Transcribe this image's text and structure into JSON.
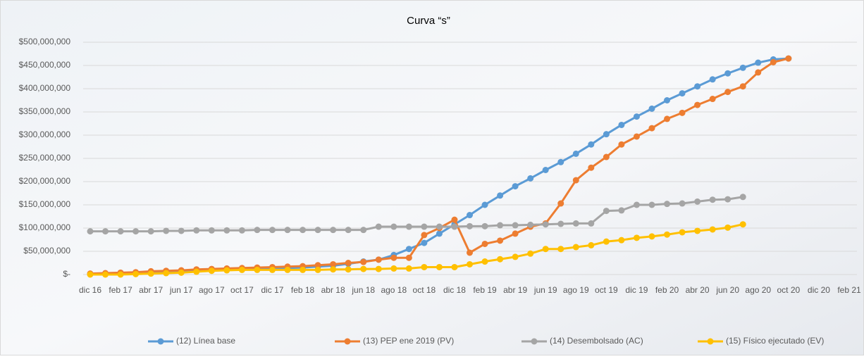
{
  "chart_data": {
    "type": "line",
    "title": "Curva “s”",
    "categories": [
      "dic 16",
      null,
      "feb 17",
      null,
      "abr 17",
      null,
      "jun 17",
      null,
      "ago 17",
      null,
      "oct 17",
      null,
      "dic 17",
      null,
      "feb 18",
      null,
      "abr 18",
      null,
      "jun 18",
      null,
      "ago 18",
      null,
      "oct 18",
      null,
      "dic 18",
      null,
      "feb 19",
      null,
      "abr 19",
      null,
      "jun 19",
      null,
      "ago 19",
      null,
      "oct 19",
      null,
      "dic 19",
      null,
      "feb 20",
      null,
      "abr 20",
      null,
      "jun 20",
      null,
      "ago 20",
      null,
      "oct 20",
      null,
      "dic 20",
      null,
      "feb 21"
    ],
    "ylim": [
      0,
      500000000
    ],
    "yticks": [
      {
        "value": 0,
        "label": "$-"
      },
      {
        "value": 50000000,
        "label": "$50,000,000"
      },
      {
        "value": 100000000,
        "label": "$100,000,000"
      },
      {
        "value": 150000000,
        "label": "$150,000,000"
      },
      {
        "value": 200000000,
        "label": "$200,000,000"
      },
      {
        "value": 250000000,
        "label": "$250,000,000"
      },
      {
        "value": 300000000,
        "label": "$300,000,000"
      },
      {
        "value": 350000000,
        "label": "$350,000,000"
      },
      {
        "value": 400000000,
        "label": "$400,000,000"
      },
      {
        "value": 450000000,
        "label": "$450,000,000"
      },
      {
        "value": 500000000,
        "label": "$500,000,000"
      }
    ],
    "grid": true,
    "legend": "bottom",
    "series": [
      {
        "name": "(12) Línea base",
        "color": "#5b9bd5",
        "values": [
          1000000,
          2000000,
          3000000,
          4000000,
          5000000,
          6000000,
          7000000,
          8000000,
          9000000,
          10000000,
          11000000,
          12000000,
          13000000,
          14000000,
          15000000,
          17000000,
          19000000,
          23000000,
          28000000,
          32000000,
          42000000,
          55000000,
          68000000,
          88000000,
          108000000,
          128000000,
          150000000,
          170000000,
          190000000,
          207000000,
          225000000,
          242000000,
          260000000,
          280000000,
          302000000,
          322000000,
          340000000,
          357000000,
          375000000,
          390000000,
          405000000,
          420000000,
          433000000,
          445000000,
          456000000,
          463000000,
          465000000,
          null,
          null,
          null,
          null
        ]
      },
      {
        "name": "(13) PEP ene 2019 (PV)",
        "color": "#ed7d31",
        "values": [
          2000000,
          3000000,
          4000000,
          5000000,
          7000000,
          8000000,
          9000000,
          11000000,
          12000000,
          13000000,
          14000000,
          15000000,
          16000000,
          17000000,
          18000000,
          20000000,
          22000000,
          25000000,
          27000000,
          32000000,
          36000000,
          36000000,
          85000000,
          100000000,
          118000000,
          47000000,
          66000000,
          73000000,
          88000000,
          103000000,
          110000000,
          153000000,
          203000000,
          230000000,
          253000000,
          280000000,
          297000000,
          315000000,
          335000000,
          348000000,
          365000000,
          378000000,
          393000000,
          405000000,
          435000000,
          457000000,
          465000000,
          null,
          null,
          null,
          null
        ]
      },
      {
        "name": "(14) Desembolsado (AC)",
        "color": "#a5a5a5",
        "values": [
          93000000,
          93000000,
          93000000,
          93000000,
          93000000,
          94000000,
          94000000,
          95000000,
          95000000,
          95000000,
          95000000,
          96000000,
          96000000,
          96000000,
          96000000,
          96000000,
          96000000,
          96000000,
          96000000,
          103000000,
          103000000,
          103000000,
          103000000,
          103000000,
          103000000,
          104000000,
          104000000,
          106000000,
          106000000,
          107000000,
          108000000,
          109000000,
          110000000,
          110000000,
          137000000,
          138000000,
          150000000,
          150000000,
          152000000,
          153000000,
          157000000,
          161000000,
          162000000,
          167000000,
          null,
          null,
          null,
          null,
          null,
          null,
          null
        ]
      },
      {
        "name": "(15) Físico ejecutado (EV)",
        "color": "#ffc000",
        "values": [
          0,
          0,
          0,
          1000000,
          2000000,
          3000000,
          4000000,
          6000000,
          8000000,
          9000000,
          10000000,
          10000000,
          10000000,
          10000000,
          10000000,
          10000000,
          11000000,
          11000000,
          12000000,
          12000000,
          13000000,
          13000000,
          16000000,
          16000000,
          16000000,
          22000000,
          28000000,
          33000000,
          38000000,
          45000000,
          55000000,
          55000000,
          59000000,
          63000000,
          71000000,
          74000000,
          79000000,
          82000000,
          86000000,
          91000000,
          94000000,
          97000000,
          101000000,
          108000000,
          null,
          null,
          null,
          null,
          null,
          null,
          null
        ]
      }
    ]
  }
}
